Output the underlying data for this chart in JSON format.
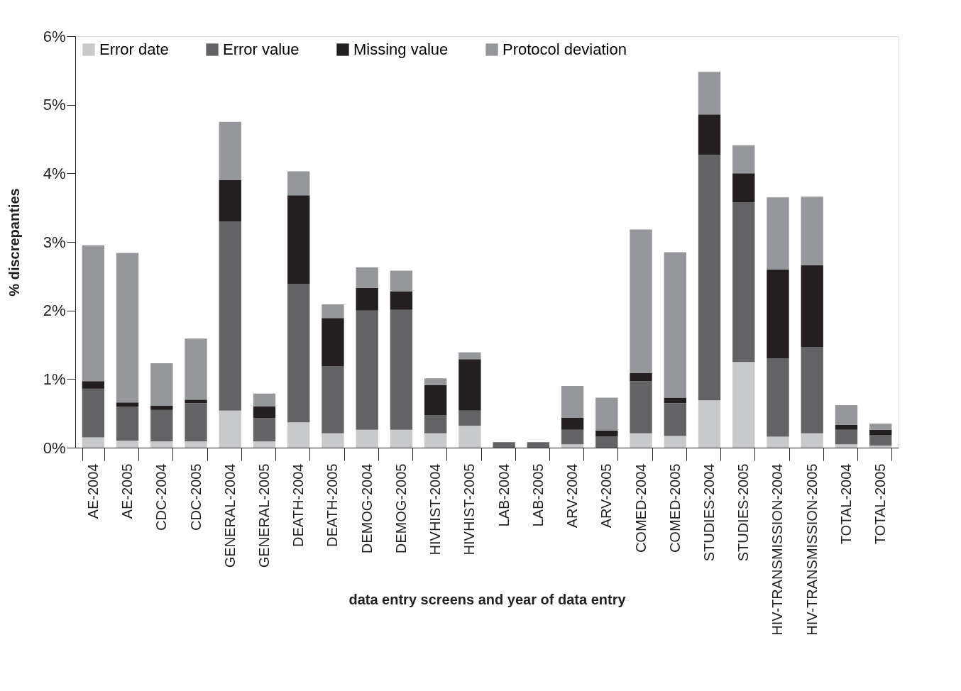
{
  "chart_data": {
    "type": "bar",
    "stacked": true,
    "xlabel": "data entry screens and year of data entry",
    "ylabel": "% discrepanties",
    "categories": [
      "AE-2004",
      "AE-2005",
      "CDC-2004",
      "CDC-2005",
      "GENERAL-2004",
      "GENERAL-2005",
      "DEATH-2004",
      "DEATH-2005",
      "DEMOG-2004",
      "DEMOG-2005",
      "HIVHIST-2004",
      "HIVHIST-2005",
      "LAB-2004",
      "LAB-2005",
      "ARV-2004",
      "ARV-2005",
      "COMED-2004",
      "COMED-2005",
      "STUDIES-2004",
      "STUDIES-2005",
      "HIV-TRANSMISSION-2004",
      "HIV-TRANSMISSION-2005",
      "TOTAL-2004",
      "TOTAL-2005"
    ],
    "series": [
      {
        "name": "Error date",
        "color": "#c8c9cb",
        "values": [
          0.15,
          0.1,
          0.09,
          0.09,
          0.54,
          0.09,
          0.37,
          0.21,
          0.26,
          0.26,
          0.21,
          0.32,
          0,
          0,
          0.05,
          0,
          0.21,
          0.17,
          0.69,
          1.25,
          0.16,
          0.21,
          0.05,
          0.03
        ]
      },
      {
        "name": "Error value",
        "color": "#636365",
        "values": [
          0.71,
          0.5,
          0.46,
          0.56,
          2.76,
          0.34,
          2.02,
          0.98,
          1.74,
          1.75,
          0.26,
          0.22,
          0.08,
          0.08,
          0.21,
          0.16,
          0.76,
          0.48,
          3.58,
          2.33,
          1.14,
          1.26,
          0.21,
          0.15
        ]
      },
      {
        "name": "Missing value",
        "color": "#231f20",
        "values": [
          0.11,
          0.06,
          0.06,
          0.05,
          0.6,
          0.17,
          1.29,
          0.7,
          0.33,
          0.27,
          0.44,
          0.75,
          0,
          0,
          0.18,
          0.09,
          0.12,
          0.08,
          0.59,
          0.42,
          1.3,
          1.19,
          0.07,
          0.08
        ]
      },
      {
        "name": "Protocol deviation",
        "color": "#96979a",
        "values": [
          1.98,
          2.18,
          0.62,
          0.89,
          0.85,
          0.19,
          0.35,
          0.2,
          0.3,
          0.3,
          0.1,
          0.1,
          0,
          0,
          0.46,
          0.48,
          2.09,
          2.12,
          0.62,
          0.41,
          1.05,
          1.0,
          0.29,
          0.09
        ]
      }
    ],
    "ylim": [
      0,
      6
    ],
    "yticks": [
      {
        "value": 0,
        "label": "0%"
      },
      {
        "value": 1,
        "label": "1%"
      },
      {
        "value": 2,
        "label": "2%"
      },
      {
        "value": 3,
        "label": "3%"
      },
      {
        "value": 4,
        "label": "4%"
      },
      {
        "value": 5,
        "label": "5%"
      },
      {
        "value": 6,
        "label": "6%"
      }
    ],
    "grid": false,
    "legend": "top left"
  }
}
